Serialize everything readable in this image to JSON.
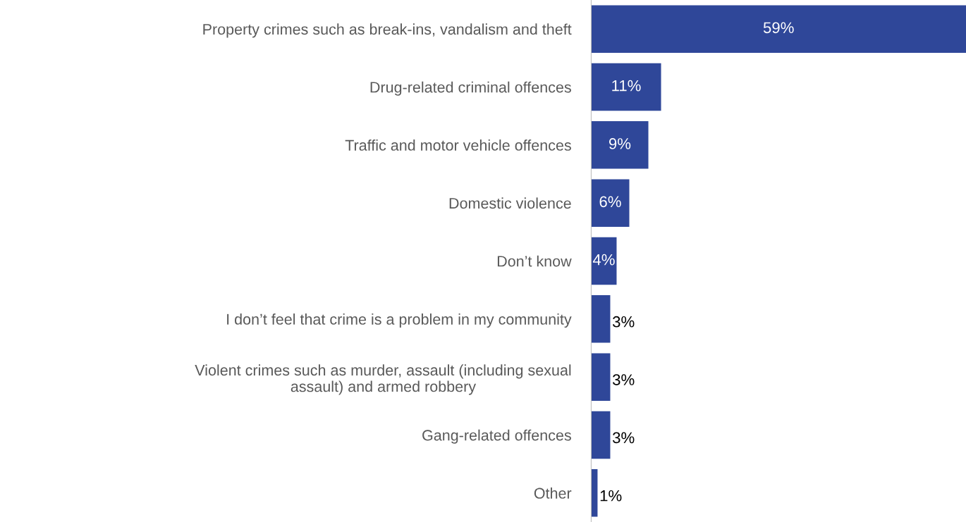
{
  "chart_data": {
    "type": "bar",
    "orientation": "horizontal",
    "categories": [
      "Property crimes such as break-ins, vandalism and theft",
      "Drug-related criminal offences",
      "Traffic and motor vehicle offences",
      "Domestic violence",
      "Don’t know",
      "I don’t feel that crime is a problem in my community",
      "Violent crimes such as murder, assault (including sexual\nassault) and armed robbery",
      "Gang-related offences",
      "Other"
    ],
    "values": [
      59,
      11,
      9,
      6,
      4,
      3,
      3,
      3,
      1
    ],
    "value_labels": [
      "59%",
      "11%",
      "9%",
      "6%",
      "4%",
      "3%",
      "3%",
      "3%",
      "1%"
    ],
    "color": "#2f4799"
  }
}
